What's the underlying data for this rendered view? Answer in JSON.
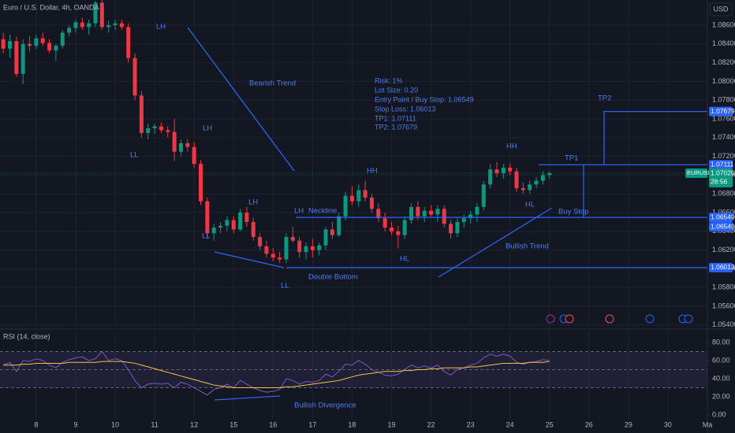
{
  "header": {
    "symbol": "Euro / U.S. Dollar, 4h, OANDA",
    "currency": "USD"
  },
  "info_box": [
    "Risk: 1%",
    "Lot Size: 0.20",
    "Entry Point / Buy Stop: 1.06549",
    "Stop Loss: 1.06013",
    "TP1: 1.07111",
    "TP2: 1.07679"
  ],
  "annotations": [
    "LH",
    "Bearish Trend",
    "LH",
    "LL",
    "LH",
    "LL",
    "LH",
    "Neckline",
    "Double Bottom",
    "LL",
    "HH",
    "HL",
    "HH",
    "HL",
    "TP1",
    "TP2",
    "Buy Stop",
    "Bullish Trend",
    "Bullish Divergence"
  ],
  "chart_data": [
    {
      "type": "candlestick",
      "up_color": "#089981",
      "down_color": "#f23645",
      "x": [
        0,
        1,
        2,
        3,
        4,
        5,
        6,
        7,
        8,
        9,
        10,
        11,
        12,
        13,
        14,
        15,
        16,
        17,
        18,
        19,
        20,
        21,
        22,
        23,
        24,
        25,
        26,
        27,
        28,
        29,
        30,
        31,
        32,
        33,
        34,
        35,
        36,
        37,
        38,
        39,
        40,
        41,
        42,
        43,
        44,
        45,
        46,
        47,
        48,
        49,
        50,
        51,
        52,
        53,
        54,
        55,
        56,
        57,
        58,
        59,
        60,
        61,
        62,
        63,
        64,
        65,
        66,
        67,
        68,
        69,
        70,
        71,
        72,
        73,
        74,
        75,
        76,
        77,
        78,
        79,
        80,
        81,
        82,
        83
      ],
      "open": [
        1.0845,
        1.0835,
        1.0843,
        1.0808,
        1.084,
        1.0838,
        1.0846,
        1.0841,
        1.0833,
        1.0838,
        1.0852,
        1.0857,
        1.0863,
        1.0858,
        1.0862,
        1.0884,
        1.0858,
        1.086,
        1.0862,
        1.0858,
        1.0825,
        1.0785,
        1.0745,
        1.075,
        1.0752,
        1.0748,
        1.0746,
        1.0725,
        1.0734,
        1.073,
        1.0712,
        1.0672,
        1.0638,
        1.0644,
        1.0646,
        1.0652,
        1.0642,
        1.066,
        1.065,
        1.0634,
        1.0624,
        1.0616,
        1.0612,
        1.061,
        1.0634,
        1.063,
        1.0618,
        1.0624,
        1.062,
        1.0625,
        1.0642,
        1.0636,
        1.0656,
        1.0678,
        1.0672,
        1.0684,
        1.0676,
        1.0664,
        1.0654,
        1.0644,
        1.064,
        1.0636,
        1.0652,
        1.0666,
        1.0656,
        1.0662,
        1.0658,
        1.0664,
        1.0648,
        1.0638,
        1.065,
        1.0654,
        1.0658,
        1.0666,
        1.069,
        1.0706,
        1.0702,
        1.0708,
        1.0704,
        1.0686,
        1.0684,
        1.069,
        1.0694,
        1.07
      ],
      "high": [
        1.0852,
        1.085,
        1.0848,
        1.0845,
        1.0848,
        1.085,
        1.0852,
        1.0845,
        1.084,
        1.0855,
        1.086,
        1.0866,
        1.0868,
        1.0866,
        1.0886,
        1.0887,
        1.0865,
        1.0866,
        1.0866,
        1.0862,
        1.083,
        1.079,
        1.0755,
        1.0755,
        1.0756,
        1.0752,
        1.076,
        1.0738,
        1.0738,
        1.0735,
        1.0716,
        1.0676,
        1.0648,
        1.065,
        1.0656,
        1.0656,
        1.0664,
        1.0666,
        1.0655,
        1.0638,
        1.063,
        1.0622,
        1.0618,
        1.0638,
        1.0645,
        1.0634,
        1.0628,
        1.0632,
        1.0628,
        1.0645,
        1.065,
        1.066,
        1.0682,
        1.0688,
        1.069,
        1.0694,
        1.068,
        1.067,
        1.066,
        1.065,
        1.0646,
        1.0656,
        1.067,
        1.0672,
        1.0666,
        1.0668,
        1.0668,
        1.0668,
        1.0652,
        1.0654,
        1.0658,
        1.0662,
        1.067,
        1.0694,
        1.0712,
        1.0714,
        1.0712,
        1.0712,
        1.0708,
        1.0692,
        1.0694,
        1.0698,
        1.0704,
        1.0704
      ],
      "low": [
        1.083,
        1.0825,
        1.0805,
        1.0797,
        1.0832,
        1.0834,
        1.0838,
        1.083,
        1.0822,
        1.0835,
        1.0848,
        1.0852,
        1.0855,
        1.085,
        1.0858,
        1.0855,
        1.0852,
        1.0855,
        1.0855,
        1.082,
        1.078,
        1.074,
        1.0738,
        1.0744,
        1.0745,
        1.074,
        1.0715,
        1.072,
        1.0725,
        1.0708,
        1.0668,
        1.0632,
        1.063,
        1.0638,
        1.064,
        1.0638,
        1.064,
        1.0645,
        1.063,
        1.062,
        1.0612,
        1.0608,
        1.0606,
        1.0606,
        1.0628,
        1.0612,
        1.061,
        1.0612,
        1.0614,
        1.062,
        1.0632,
        1.0634,
        1.0652,
        1.0668,
        1.0666,
        1.0672,
        1.066,
        1.065,
        1.064,
        1.0636,
        1.0622,
        1.0632,
        1.0648,
        1.0652,
        1.065,
        1.0656,
        1.065,
        1.0644,
        1.0632,
        1.0634,
        1.0644,
        1.0648,
        1.065,
        1.0662,
        1.0686,
        1.0698,
        1.0696,
        1.07,
        1.0682,
        1.068,
        1.068,
        1.0686,
        1.069,
        1.0696
      ],
      "close": [
        1.0835,
        1.0843,
        1.0808,
        1.084,
        1.0838,
        1.0846,
        1.0841,
        1.0833,
        1.0838,
        1.0852,
        1.0857,
        1.0863,
        1.0858,
        1.0862,
        1.0884,
        1.0858,
        1.086,
        1.0862,
        1.0858,
        1.0825,
        1.0785,
        1.0745,
        1.075,
        1.0752,
        1.0748,
        1.0746,
        1.0725,
        1.0734,
        1.073,
        1.0712,
        1.0672,
        1.0638,
        1.0644,
        1.0646,
        1.0652,
        1.0642,
        1.066,
        1.065,
        1.0634,
        1.0624,
        1.0616,
        1.0612,
        1.061,
        1.0634,
        1.063,
        1.0618,
        1.0624,
        1.062,
        1.0625,
        1.0642,
        1.0636,
        1.0656,
        1.0678,
        1.0672,
        1.0684,
        1.0676,
        1.0664,
        1.0654,
        1.0644,
        1.064,
        1.0636,
        1.0652,
        1.0666,
        1.0656,
        1.0662,
        1.0658,
        1.0664,
        1.0648,
        1.0638,
        1.065,
        1.0654,
        1.0658,
        1.0666,
        1.069,
        1.0706,
        1.0702,
        1.0708,
        1.0704,
        1.0686,
        1.0684,
        1.069,
        1.0694,
        1.07,
        1.0702
      ],
      "xlim": [
        -0.5,
        107
      ],
      "xticks": [
        {
          "value": 5,
          "label": "8"
        },
        {
          "value": 11,
          "label": "9"
        },
        {
          "value": 17,
          "label": "10"
        },
        {
          "value": 23,
          "label": "11"
        },
        {
          "value": 29,
          "label": "12"
        },
        {
          "value": 35,
          "label": "15"
        },
        {
          "value": 41,
          "label": "16"
        },
        {
          "value": 47,
          "label": "17"
        },
        {
          "value": 53,
          "label": "18"
        },
        {
          "value": 59,
          "label": "19"
        },
        {
          "value": 65,
          "label": "22"
        },
        {
          "value": 71,
          "label": "23"
        },
        {
          "value": 77,
          "label": "24"
        },
        {
          "value": 83,
          "label": "25"
        },
        {
          "value": 89,
          "label": "26"
        },
        {
          "value": 95,
          "label": "29"
        },
        {
          "value": 101,
          "label": "30"
        },
        {
          "value": 107,
          "label": "Ma"
        }
      ],
      "ylim": [
        1.05382,
        1.08869
      ],
      "yticks": [
        {
          "value": 1.054,
          "label": "1.05400"
        },
        {
          "value": 1.056,
          "label": "1.05600"
        },
        {
          "value": 1.058,
          "label": "1.05800"
        },
        {
          "value": 1.06,
          "label": "1.06000"
        },
        {
          "value": 1.062,
          "label": "1.06200"
        },
        {
          "value": 1.064,
          "label": "1.06400"
        },
        {
          "value": 1.066,
          "label": "1.06600"
        },
        {
          "value": 1.068,
          "label": "1.06800"
        },
        {
          "value": 1.07,
          "label": "1.07000"
        },
        {
          "value": 1.072,
          "label": "1.07200"
        },
        {
          "value": 1.074,
          "label": "1.07400"
        },
        {
          "value": 1.076,
          "label": "1.07600"
        },
        {
          "value": 1.078,
          "label": "1.07800"
        },
        {
          "value": 1.08,
          "label": "1.08000"
        },
        {
          "value": 1.082,
          "label": "1.08200"
        },
        {
          "value": 1.084,
          "label": "1.08400"
        },
        {
          "value": 1.086,
          "label": "1.08600"
        }
      ],
      "grid": true,
      "price_levels": [
        1.07679,
        1.07111,
        1.06549,
        1.06549,
        1.06013
      ],
      "level_color": "#2962ff",
      "last_price": {
        "value": 1.0702,
        "label": "1.07020"
      },
      "last_symbol": "EURUSD",
      "countdown": "28:56"
    },
    {
      "type": "line",
      "title": "RSI (14, close)",
      "x": [
        0,
        1,
        2,
        3,
        4,
        5,
        6,
        7,
        8,
        9,
        10,
        11,
        12,
        13,
        14,
        15,
        16,
        17,
        18,
        19,
        20,
        21,
        22,
        23,
        24,
        25,
        26,
        27,
        28,
        29,
        30,
        31,
        32,
        33,
        34,
        35,
        36,
        37,
        38,
        39,
        40,
        41,
        42,
        43,
        44,
        45,
        46,
        47,
        48,
        49,
        50,
        51,
        52,
        53,
        54,
        55,
        56,
        57,
        58,
        59,
        60,
        61,
        62,
        63,
        64,
        65,
        66,
        67,
        68,
        69,
        70,
        71,
        72,
        73,
        74,
        75,
        76,
        77,
        78,
        79,
        80,
        81,
        82,
        83
      ],
      "series": [
        {
          "color": "#7e57c2",
          "values": [
            55,
            58,
            48,
            60,
            59,
            62,
            60,
            55,
            52,
            58,
            61,
            63,
            64,
            60,
            62,
            70,
            60,
            62,
            60,
            50,
            38,
            30,
            34,
            35,
            34,
            35,
            30,
            36,
            34,
            30,
            26,
            22,
            28,
            30,
            34,
            30,
            38,
            34,
            30,
            27,
            25,
            26,
            28,
            40,
            38,
            34,
            37,
            36,
            38,
            45,
            42,
            48,
            56,
            55,
            60,
            56,
            50,
            47,
            44,
            43,
            45,
            50,
            55,
            52,
            54,
            52,
            55,
            48,
            44,
            50,
            52,
            55,
            57,
            63,
            67,
            65,
            67,
            65,
            58,
            56,
            58,
            59,
            61,
            60
          ]
        },
        {
          "color": "#f5c542",
          "values": [
            55,
            55,
            55,
            56,
            56,
            57,
            57,
            57,
            57,
            57,
            58,
            58,
            58,
            58,
            58,
            59,
            59,
            59,
            59,
            58,
            57,
            55,
            53,
            51,
            49,
            47,
            45,
            43,
            41,
            39,
            37,
            35,
            33,
            32,
            31,
            30,
            30,
            30,
            30,
            30,
            30,
            30,
            30,
            31,
            31,
            32,
            33,
            34,
            35,
            36,
            37,
            38,
            40,
            42,
            44,
            45,
            46,
            47,
            48,
            48,
            48,
            49,
            49,
            50,
            50,
            51,
            51,
            52,
            52,
            52,
            52,
            53,
            53,
            54,
            55,
            56,
            57,
            57,
            57,
            57,
            58,
            58,
            58,
            59
          ]
        }
      ],
      "xlim": [
        -0.5,
        107
      ],
      "ylim": [
        -4.3,
        93
      ],
      "yticks": [
        {
          "value": 0,
          "label": "0.00"
        },
        {
          "value": 20,
          "label": "20.00"
        },
        {
          "value": 40,
          "label": "40.00"
        },
        {
          "value": 60,
          "label": "60.00"
        },
        {
          "value": 80,
          "label": "80.00"
        }
      ],
      "levels": [
        70,
        50,
        30
      ]
    }
  ]
}
